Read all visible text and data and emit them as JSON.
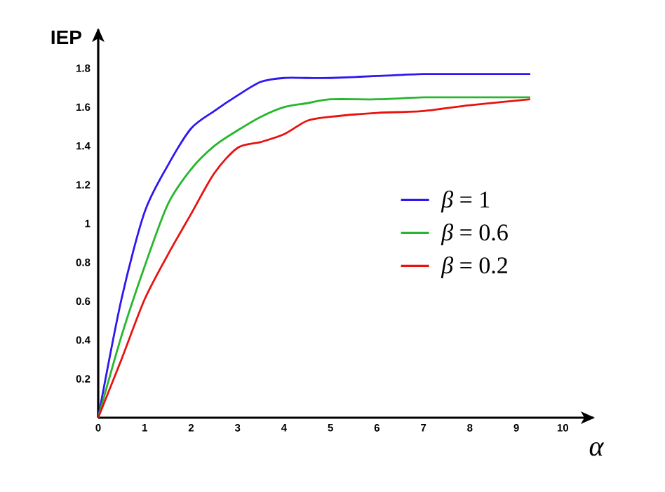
{
  "chart_data": {
    "type": "line",
    "xlabel": "α",
    "ylabel": "IEP",
    "xlim": [
      0,
      10.66
    ],
    "ylim": [
      0,
      2.0
    ],
    "xticks": [
      0,
      1,
      2,
      3,
      4,
      5,
      6,
      7,
      8,
      9,
      10
    ],
    "yticks": [
      0.2,
      0.4,
      0.6,
      0.8,
      1,
      1.2,
      1.4,
      1.6,
      1.8
    ],
    "grid": false,
    "legend": "right",
    "marker": "none",
    "line_style": "solid",
    "x": [
      0,
      0.5,
      1,
      1.5,
      2,
      2.5,
      3,
      3.5,
      4,
      4.5,
      5,
      6,
      7,
      8,
      9.3
    ],
    "series": [
      {
        "name": "*β* = 1",
        "color": "#2f17ef",
        "values": [
          0,
          0.61,
          1.06,
          1.3,
          1.49,
          1.58,
          1.66,
          1.73,
          1.75,
          1.75,
          1.75,
          1.76,
          1.77,
          1.77,
          1.77
        ]
      },
      {
        "name": "*β* = 0.6",
        "color": "#26b72e",
        "values": [
          0,
          0.42,
          0.78,
          1.1,
          1.28,
          1.4,
          1.48,
          1.55,
          1.6,
          1.62,
          1.64,
          1.64,
          1.65,
          1.65,
          1.65
        ]
      },
      {
        "name": "*β* = 0.2",
        "color": "#e8120e",
        "values": [
          0,
          0.3,
          0.61,
          0.84,
          1.05,
          1.26,
          1.39,
          1.42,
          1.46,
          1.53,
          1.55,
          1.57,
          1.58,
          1.61,
          1.64
        ]
      }
    ]
  }
}
